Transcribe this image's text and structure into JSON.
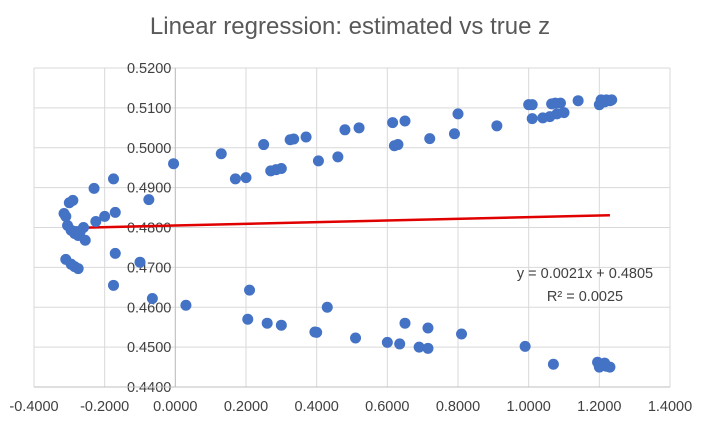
{
  "chart_data": {
    "type": "scatter",
    "title": "Linear regression: estimated vs true z",
    "xlabel": "",
    "ylabel": "",
    "xlim": [
      -0.4,
      1.4
    ],
    "ylim": [
      0.44,
      0.52
    ],
    "x_ticks": [
      "-0.4000",
      "-0.2000",
      "0.0000",
      "0.2000",
      "0.4000",
      "0.6000",
      "0.8000",
      "1.0000",
      "1.2000",
      "1.4000"
    ],
    "y_ticks": [
      "0.4400",
      "0.4500",
      "0.4600",
      "0.4700",
      "0.4800",
      "0.4900",
      "0.5000",
      "0.5100",
      "0.5200"
    ],
    "grid": true,
    "point_color": "#4472C4",
    "trendline_color": "#E00000",
    "trendline": {
      "slope": 0.0021,
      "intercept": 0.4805,
      "x_range": [
        -0.31,
        1.23
      ],
      "equation": "y = 0.0021x + 0.4805",
      "r_squared": "R² = 0.0025"
    },
    "series": [
      {
        "points": [
          [
            -0.315,
            0.4835
          ],
          [
            -0.31,
            0.4828
          ],
          [
            -0.305,
            0.4805
          ],
          [
            -0.3,
            0.4862
          ],
          [
            -0.295,
            0.4793
          ],
          [
            -0.29,
            0.4868
          ],
          [
            -0.285,
            0.4785
          ],
          [
            -0.28,
            0.479
          ],
          [
            -0.275,
            0.478
          ],
          [
            -0.27,
            0.4788
          ],
          [
            -0.26,
            0.48
          ],
          [
            -0.255,
            0.4768
          ],
          [
            -0.23,
            0.4898
          ],
          [
            -0.225,
            0.4815
          ],
          [
            -0.2,
            0.4828
          ],
          [
            -0.175,
            0.4922
          ],
          [
            -0.17,
            0.4838
          ],
          [
            -0.075,
            0.487
          ],
          [
            -0.005,
            0.496
          ],
          [
            0.13,
            0.4985
          ],
          [
            0.17,
            0.4922
          ],
          [
            0.2,
            0.4925
          ],
          [
            0.25,
            0.5008
          ],
          [
            0.27,
            0.4942
          ],
          [
            0.285,
            0.4945
          ],
          [
            0.3,
            0.4948
          ],
          [
            0.325,
            0.502
          ],
          [
            0.335,
            0.5022
          ],
          [
            0.37,
            0.5027
          ],
          [
            0.405,
            0.4967
          ],
          [
            0.46,
            0.4977
          ],
          [
            0.48,
            0.5045
          ],
          [
            0.52,
            0.505
          ],
          [
            0.615,
            0.5063
          ],
          [
            0.62,
            0.5005
          ],
          [
            0.63,
            0.5008
          ],
          [
            0.65,
            0.5067
          ],
          [
            0.72,
            0.5023
          ],
          [
            0.79,
            0.5035
          ],
          [
            0.8,
            0.5085
          ],
          [
            0.91,
            0.5055
          ],
          [
            1.0,
            0.5108
          ],
          [
            1.01,
            0.5108
          ],
          [
            1.01,
            0.5073
          ],
          [
            1.04,
            0.5075
          ],
          [
            1.06,
            0.5078
          ],
          [
            1.065,
            0.511
          ],
          [
            1.075,
            0.5112
          ],
          [
            1.08,
            0.5085
          ],
          [
            1.09,
            0.5112
          ],
          [
            1.1,
            0.5088
          ],
          [
            1.14,
            0.5118
          ],
          [
            1.2,
            0.5108
          ],
          [
            1.205,
            0.512
          ],
          [
            1.215,
            0.5115
          ],
          [
            1.22,
            0.512
          ],
          [
            1.23,
            0.5118
          ],
          [
            1.235,
            0.512
          ],
          [
            -0.31,
            0.472
          ],
          [
            -0.295,
            0.4708
          ],
          [
            -0.285,
            0.4702
          ],
          [
            -0.275,
            0.4697
          ],
          [
            -0.17,
            0.4735
          ],
          [
            -0.175,
            0.4655
          ],
          [
            -0.1,
            0.4713
          ],
          [
            -0.065,
            0.4622
          ],
          [
            0.03,
            0.4605
          ],
          [
            0.205,
            0.457
          ],
          [
            0.21,
            0.4643
          ],
          [
            0.26,
            0.456
          ],
          [
            0.3,
            0.4555
          ],
          [
            0.395,
            0.4538
          ],
          [
            0.4,
            0.4537
          ],
          [
            0.43,
            0.46
          ],
          [
            0.51,
            0.4523
          ],
          [
            0.6,
            0.4512
          ],
          [
            0.635,
            0.4508
          ],
          [
            0.65,
            0.456
          ],
          [
            0.69,
            0.45
          ],
          [
            0.715,
            0.4548
          ],
          [
            0.715,
            0.4497
          ],
          [
            0.81,
            0.4533
          ],
          [
            0.99,
            0.4502
          ],
          [
            1.07,
            0.4457
          ],
          [
            1.195,
            0.4462
          ],
          [
            1.2,
            0.445
          ],
          [
            1.205,
            0.4455
          ],
          [
            1.215,
            0.446
          ],
          [
            1.22,
            0.4452
          ],
          [
            1.23,
            0.445
          ]
        ]
      }
    ]
  }
}
